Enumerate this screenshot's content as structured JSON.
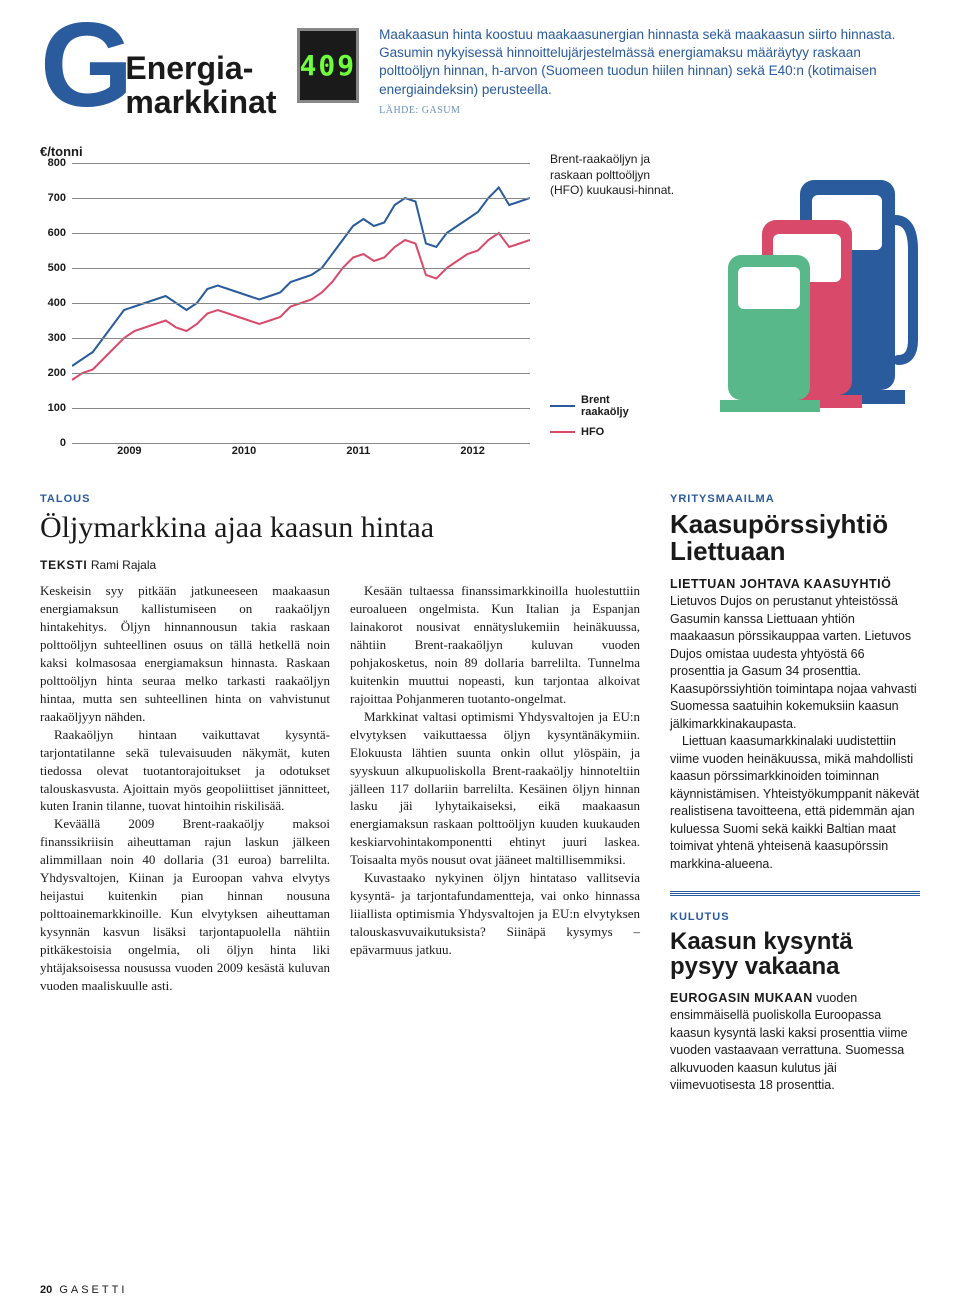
{
  "header": {
    "logo_letter": "G",
    "logo_line1": "Energia-",
    "logo_line2": "markkinat",
    "digital_display": "409",
    "intro": "Maakaasun hinta koostuu maakaasunergian hinnasta sekä maakaasun siirto hinnasta. Gasumin nykyisessä hinnoittelujärjestelmässä energiamaksu määräytyy raskaan polttoöljyn hinnan, h-arvon (Suomeen tuodun hiilen hinnan) sekä E40:n (kotimaisen energiaindeksin) perusteella.",
    "source": "LÄHDE: GASUM"
  },
  "chart": {
    "type": "line",
    "y_label": "€/tonni",
    "y_ticks": [
      0,
      100,
      200,
      300,
      400,
      500,
      600,
      700,
      800
    ],
    "ylim": [
      0,
      800
    ],
    "x_labels": [
      "2009",
      "2010",
      "2011",
      "2012"
    ],
    "grid_color": "#888888",
    "background_color": "#ffffff",
    "caption": "Brent-raakaöljyn ja raskaan polttoöljyn (HFO) kuukausi-hinnat.",
    "series": [
      {
        "name": "Brent raakaöljy",
        "color": "#2a5b9c",
        "width": 2,
        "points": [
          220,
          240,
          260,
          300,
          340,
          380,
          390,
          400,
          410,
          420,
          400,
          380,
          400,
          440,
          450,
          440,
          430,
          420,
          410,
          420,
          430,
          460,
          470,
          480,
          500,
          540,
          580,
          620,
          640,
          620,
          630,
          680,
          700,
          690,
          570,
          560,
          600,
          620,
          640,
          660,
          700,
          730,
          680,
          690,
          700
        ]
      },
      {
        "name": "HFO",
        "color": "#d94a6a",
        "width": 2,
        "points": [
          180,
          200,
          210,
          240,
          270,
          300,
          320,
          330,
          340,
          350,
          330,
          320,
          340,
          370,
          380,
          370,
          360,
          350,
          340,
          350,
          360,
          390,
          400,
          410,
          430,
          460,
          500,
          530,
          540,
          520,
          530,
          560,
          580,
          570,
          480,
          470,
          500,
          520,
          540,
          550,
          580,
          600,
          560,
          570,
          580
        ]
      }
    ],
    "legend": [
      {
        "label_line1": "Brent",
        "label_line2": "raakaöljy",
        "color": "#2a5b9c"
      },
      {
        "label_line1": "HFO",
        "label_line2": "",
        "color": "#d94a6a"
      }
    ],
    "pump_colors": {
      "back": "#2a5b9c",
      "mid": "#d94a6a",
      "front": "#58b88a"
    }
  },
  "main_article": {
    "category": "TALOUS",
    "headline": "Öljymarkkina ajaa kaasun hintaa",
    "byline_label": "TEKSTI",
    "byline_name": "Rami Rajala",
    "paragraphs": [
      "Keskeisin syy pitkään jatkuneeseen maakaasun energiamaksun kallistumiseen on raakaöljyn hintakehitys. Öljyn hinnannousun takia raskaan polttoöljyn suhteellinen osuus on tällä hetkellä noin kaksi kolmasosaa energiamaksun hinnasta. Raskaan polttoöljyn hinta seuraa melko tarkasti raakaöljyn hintaa, mutta sen suhteellinen hinta on vahvistunut raakaöljyyn nähden.",
      "Raakaöljyn hintaan vaikuttavat kysyntä-tarjontatilanne sekä tulevaisuuden näkymät, kuten tiedossa olevat tuotantorajoitukset ja odotukset talouskasvusta. Ajoittain myös geopoliittiset jännitteet, kuten Iranin tilanne, tuovat hintoihin riskilisää.",
      "Keväällä 2009 Brent-raakaöljy maksoi finanssikriisin aiheuttaman rajun laskun jälkeen alimmillaan noin 40 dollaria (31 euroa) barrelilta. Yhdysvaltojen, Kiinan ja Euroopan vahva elvytys heijastui kuitenkin pian hinnan nousuna polttoainemarkkinoille. Kun elvytyksen aiheuttaman kysynnän kasvun lisäksi tarjontapuolella nähtiin pitkäkestoisia ongelmia, oli öljyn hinta liki yhtäjaksoisessa nousussa vuoden 2009 kesästä kuluvan vuoden maaliskuulle asti.",
      "Kesään tultaessa finanssimarkkinoilla huolestuttiin euroalueen ongelmista. Kun Italian ja Espanjan lainakorot nousivat ennätyslukemiin heinäkuussa, nähtiin Brent-raakaöljyn kuluvan vuoden pohjakosketus, noin 89 dollaria barrelilta. Tunnelma kuitenkin muuttui nopeasti, kun tarjontaa alkoivat rajoittaa Pohjanmeren tuotanto-ongelmat.",
      "Markkinat valtasi optimismi Yhdysvaltojen ja EU:n elvytyksen vaikuttaessa öljyn kysyntänäkymiin. Elokuusta lähtien suunta onkin ollut ylöspäin, ja syyskuun alkupuoliskolla Brent-raakaöljy hinnoteltiin jälleen 117 dollariin barrelilta. Kesäinen öljyn hinnan lasku jäi lyhytaikaiseksi, eikä maakaasun energiamaksun raskaan polttoöljyn kuuden kuukauden keskiarvohintakomponentti ehtinyt juuri laskea. Toisaalta myös nousut ovat jääneet maltillisemmiksi.",
      "Kuvastaako nykyinen öljyn hintataso vallitsevia kysyntä- ja tarjontafundamentteja, vai onko hinnassa liiallista optimismia Yhdysvaltojen ja EU:n elvytyksen talouskasvuvaikutuksista? Siinäpä kysymys – epävarmuus jatkuu."
    ]
  },
  "side1": {
    "category": "YRITYSMAAILMA",
    "headline": "Kaasupörssiyhtiö Liettuaan",
    "lead": "LIETTUAN JOHTAVA KAASUYHTIÖ",
    "paragraphs": [
      "Lietuvos Dujos on perustanut yhteistössä Gasumin kanssa Liettuaan yhtiön maakaasun pörssikauppaa varten. Lietuvos Dujos omistaa uudesta yhtyöstä 66 prosenttia ja Gasum 34 prosenttia. Kaasupörssiyhtiön toimintapa nojaa vahvasti Suomessa saatuihin kokemuksiin kaasun jälkimarkkinakaupasta.",
      "Liettuan kaasumarkkinalaki uudistettiin viime vuoden heinäkuussa, mikä mahdollisti kaasun pörssimarkkinoiden toiminnan käynnistämisen. Yhteistyökumppanit näkevät realistisena tavoitteena, että pidemmän ajan kuluessa Suomi sekä kaikki Baltian maat toimivat yhtenä yhteisenä kaasupörssin markkina-alueena."
    ]
  },
  "side2": {
    "category": "KULUTUS",
    "headline": "Kaasun kysyntä pysyy vakaana",
    "lead": "EUROGASIN MUKAAN",
    "body": "vuoden ensimmäisellä puoliskolla Euroopassa kaasun kysyntä laski kaksi prosenttia viime vuoden vastaavaan verrattuna. Suomessa alkuvuoden kaasun kulutus jäi viimevuotisesta 18 prosenttia."
  },
  "footer": {
    "page": "20",
    "magazine": "GASETTI"
  }
}
